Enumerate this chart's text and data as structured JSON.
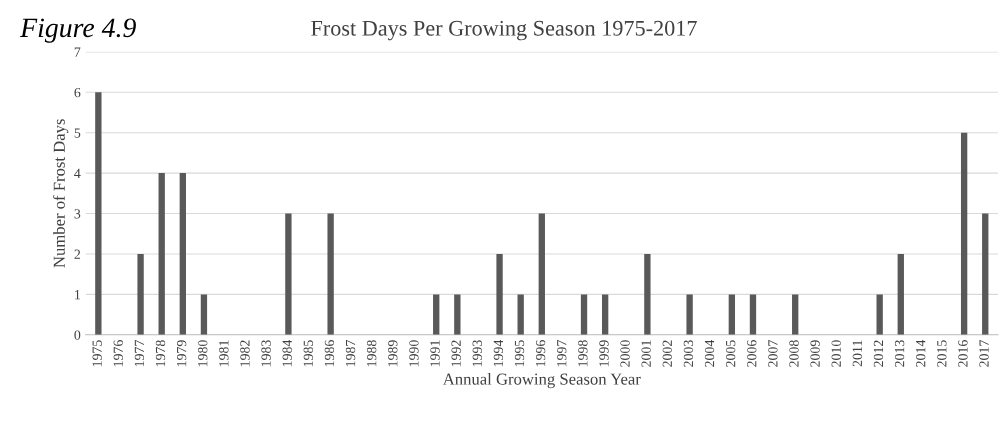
{
  "chart_data": {
    "type": "bar",
    "title": "Frost Days Per Growing Season 1975-2017",
    "annotations": [
      "Figure 4.9"
    ],
    "xlabel": "Annual Growing Season Year",
    "ylabel": "Number of Frost Days",
    "categories": [
      "1975",
      "1976",
      "1977",
      "1978",
      "1979",
      "1980",
      "1981",
      "1982",
      "1983",
      "1984",
      "1985",
      "1986",
      "1987",
      "1988",
      "1989",
      "1990",
      "1991",
      "1992",
      "1993",
      "1994",
      "1995",
      "1996",
      "1997",
      "1998",
      "1999",
      "2000",
      "2001",
      "2002",
      "2003",
      "2004",
      "2005",
      "2006",
      "2007",
      "2008",
      "2009",
      "2010",
      "2011",
      "2012",
      "2013",
      "2014",
      "2015",
      "2016",
      "2017"
    ],
    "values": [
      6,
      0,
      2,
      4,
      4,
      1,
      0,
      0,
      0,
      3,
      0,
      3,
      0,
      0,
      0,
      0,
      1,
      1,
      0,
      2,
      1,
      3,
      0,
      1,
      1,
      0,
      2,
      0,
      1,
      0,
      1,
      1,
      0,
      1,
      0,
      0,
      0,
      1,
      2,
      0,
      0,
      5,
      3
    ],
    "color": "#595959",
    "ylim": [
      0,
      7
    ],
    "yticks": [
      0,
      1,
      2,
      3,
      4,
      5,
      6,
      7
    ],
    "grid": "y"
  }
}
